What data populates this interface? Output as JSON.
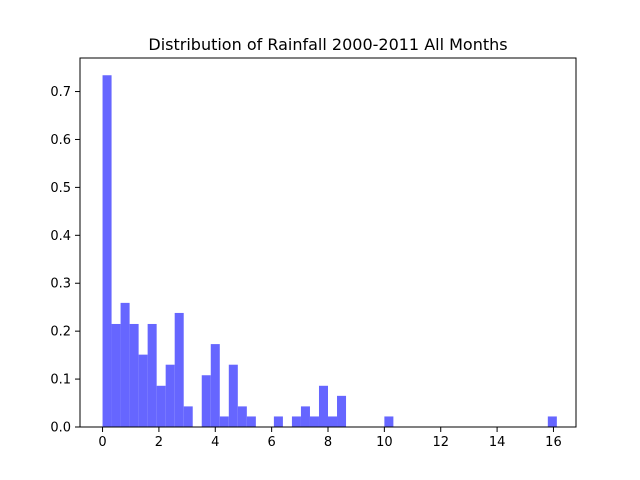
{
  "chart_data": {
    "type": "bar",
    "title": "Distribution of Rainfall 2000-2011 All Months",
    "xlabel": "",
    "ylabel": "",
    "xlim": [
      -0.8,
      16.8
    ],
    "ylim": [
      0,
      0.77
    ],
    "xticks": [
      0,
      2,
      4,
      6,
      8,
      10,
      12,
      14,
      16
    ],
    "yticks": [
      0.0,
      0.1,
      0.2,
      0.3,
      0.4,
      0.5,
      0.6,
      0.7
    ],
    "ytick_labels": [
      "0.0",
      "0.1",
      "0.2",
      "0.3",
      "0.4",
      "0.5",
      "0.6",
      "0.7"
    ],
    "xtick_labels": [
      "0",
      "2",
      "4",
      "6",
      "8",
      "10",
      "12",
      "14",
      "16"
    ],
    "bar_color": "#6666ff",
    "grid": false,
    "bin_width": 0.32,
    "bins": [
      {
        "x0": 0.0,
        "value": 0.734
      },
      {
        "x0": 0.32,
        "value": 0.215
      },
      {
        "x0": 0.64,
        "value": 0.259
      },
      {
        "x0": 0.96,
        "value": 0.215
      },
      {
        "x0": 1.28,
        "value": 0.151
      },
      {
        "x0": 1.6,
        "value": 0.215
      },
      {
        "x0": 1.92,
        "value": 0.086
      },
      {
        "x0": 2.24,
        "value": 0.13
      },
      {
        "x0": 2.56,
        "value": 0.238
      },
      {
        "x0": 2.88,
        "value": 0.043
      },
      {
        "x0": 3.52,
        "value": 0.108
      },
      {
        "x0": 3.84,
        "value": 0.173
      },
      {
        "x0": 4.16,
        "value": 0.022
      },
      {
        "x0": 4.48,
        "value": 0.13
      },
      {
        "x0": 4.8,
        "value": 0.043
      },
      {
        "x0": 5.12,
        "value": 0.022
      },
      {
        "x0": 6.08,
        "value": 0.022
      },
      {
        "x0": 6.72,
        "value": 0.022
      },
      {
        "x0": 7.04,
        "value": 0.043
      },
      {
        "x0": 7.36,
        "value": 0.022
      },
      {
        "x0": 7.68,
        "value": 0.086
      },
      {
        "x0": 8.0,
        "value": 0.022
      },
      {
        "x0": 8.32,
        "value": 0.065
      },
      {
        "x0": 10.0,
        "value": 0.022
      },
      {
        "x0": 15.8,
        "value": 0.022
      }
    ]
  }
}
